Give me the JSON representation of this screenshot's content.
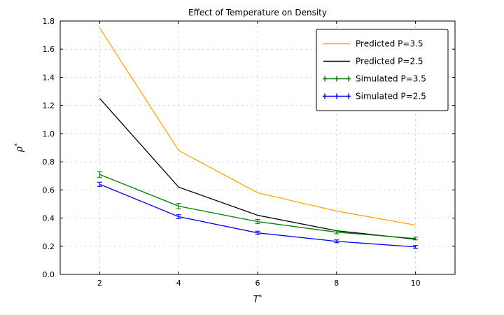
{
  "chart_data": {
    "type": "line",
    "title": "Effect of Temperature on Density",
    "xlabel": "T*",
    "ylabel": "ρ*",
    "xlim": [
      1,
      11
    ],
    "ylim": [
      0.0,
      1.8
    ],
    "xticks": [
      2,
      4,
      6,
      8,
      10
    ],
    "xtick_labels": [
      "2",
      "4",
      "6",
      "8",
      "10"
    ],
    "yticks": [
      0.0,
      0.2,
      0.4,
      0.6,
      0.8,
      1.0,
      1.2,
      1.4,
      1.6,
      1.8
    ],
    "ytick_labels": [
      "0.0",
      "0.2",
      "0.4",
      "0.6",
      "0.8",
      "1.0",
      "1.2",
      "1.4",
      "1.6",
      "1.8"
    ],
    "grid": true,
    "grid_color": "#c8c8c8",
    "legend_position": "upper right",
    "x": [
      2,
      4,
      6,
      8,
      10
    ],
    "series": [
      {
        "name": "Predicted P=3.5",
        "color": "#ffa500",
        "style": "line",
        "values": [
          1.75,
          0.88,
          0.58,
          0.45,
          0.35
        ]
      },
      {
        "name": "Predicted P=2.5",
        "color": "#000000",
        "style": "line",
        "values": [
          1.25,
          0.62,
          0.42,
          0.31,
          0.25
        ]
      },
      {
        "name": "Simulated P=3.5",
        "color": "#008000",
        "style": "errorbar",
        "values": [
          0.71,
          0.485,
          0.375,
          0.3,
          0.255
        ],
        "yerr": [
          0.02,
          0.018,
          0.015,
          0.012,
          0.01
        ]
      },
      {
        "name": "Simulated P=2.5",
        "color": "#0000ff",
        "style": "errorbar",
        "values": [
          0.64,
          0.41,
          0.295,
          0.235,
          0.195
        ],
        "yerr": [
          0.015,
          0.014,
          0.012,
          0.01,
          0.01
        ]
      }
    ]
  }
}
